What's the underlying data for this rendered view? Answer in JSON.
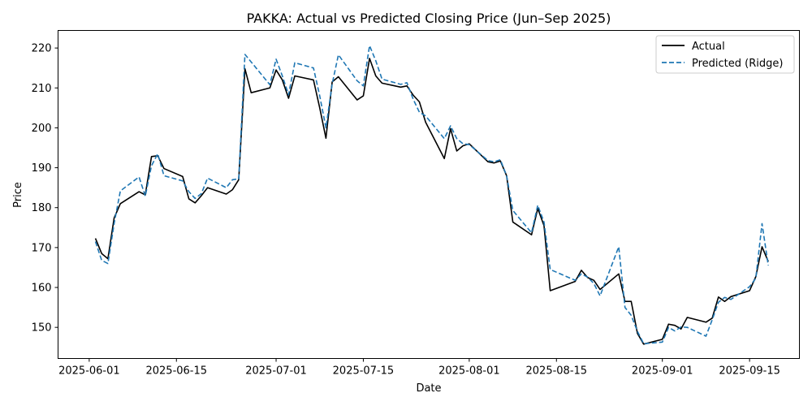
{
  "chart_data": {
    "type": "line",
    "title": "PAKKA: Actual vs Predicted Closing Price (Jun–Sep 2025)",
    "xlabel": "Date",
    "ylabel": "Price",
    "x_range": [
      "2025-05-27",
      "2025-09-23"
    ],
    "ylim": [
      142.2,
      224.4
    ],
    "x_ticks": [
      "2025-06-01",
      "2025-06-15",
      "2025-07-01",
      "2025-07-15",
      "2025-08-01",
      "2025-08-15",
      "2025-09-01",
      "2025-09-15"
    ],
    "y_ticks": [
      150,
      160,
      170,
      180,
      190,
      200,
      210,
      220
    ],
    "grid": false,
    "legend_position": "top-right",
    "series": [
      {
        "name": "Actual",
        "color": "#000000",
        "style": "solid",
        "points": [
          [
            "2025-06-02",
            172.3
          ],
          [
            "2025-06-03",
            168.5
          ],
          [
            "2025-06-04",
            167.2
          ],
          [
            "2025-06-05",
            177.4
          ],
          [
            "2025-06-06",
            181.0
          ],
          [
            "2025-06-09",
            184.0
          ],
          [
            "2025-06-10",
            183.2
          ],
          [
            "2025-06-11",
            192.8
          ],
          [
            "2025-06-12",
            193.0
          ],
          [
            "2025-06-13",
            189.8
          ],
          [
            "2025-06-16",
            187.8
          ],
          [
            "2025-06-17",
            182.2
          ],
          [
            "2025-06-18",
            181.2
          ],
          [
            "2025-06-19",
            183.0
          ],
          [
            "2025-06-20",
            185.0
          ],
          [
            "2025-06-23",
            183.4
          ],
          [
            "2025-06-24",
            184.5
          ],
          [
            "2025-06-25",
            187.0
          ],
          [
            "2025-06-26",
            214.8
          ],
          [
            "2025-06-27",
            208.8
          ],
          [
            "2025-06-30",
            210.0
          ],
          [
            "2025-07-01",
            214.5
          ],
          [
            "2025-07-02",
            212.0
          ],
          [
            "2025-07-03",
            207.4
          ],
          [
            "2025-07-04",
            213.0
          ],
          [
            "2025-07-07",
            212.0
          ],
          [
            "2025-07-08",
            205.0
          ],
          [
            "2025-07-09",
            197.4
          ],
          [
            "2025-07-10",
            211.5
          ],
          [
            "2025-07-11",
            212.8
          ],
          [
            "2025-07-14",
            207.0
          ],
          [
            "2025-07-15",
            208.0
          ],
          [
            "2025-07-16",
            217.4
          ],
          [
            "2025-07-17",
            213.0
          ],
          [
            "2025-07-18",
            211.2
          ],
          [
            "2025-07-21",
            210.2
          ],
          [
            "2025-07-22",
            210.5
          ],
          [
            "2025-07-23",
            208.2
          ],
          [
            "2025-07-24",
            206.5
          ],
          [
            "2025-07-25",
            201.4
          ],
          [
            "2025-07-28",
            192.3
          ],
          [
            "2025-07-29",
            199.8
          ],
          [
            "2025-07-30",
            194.2
          ],
          [
            "2025-07-31",
            195.5
          ],
          [
            "2025-08-01",
            196.0
          ],
          [
            "2025-08-04",
            191.5
          ],
          [
            "2025-08-05",
            191.2
          ],
          [
            "2025-08-06",
            191.7
          ],
          [
            "2025-08-07",
            188.0
          ],
          [
            "2025-08-08",
            176.4
          ],
          [
            "2025-08-11",
            173.2
          ],
          [
            "2025-08-12",
            179.8
          ],
          [
            "2025-08-13",
            175.5
          ],
          [
            "2025-08-14",
            159.2
          ],
          [
            "2025-08-18",
            161.5
          ],
          [
            "2025-08-19",
            164.3
          ],
          [
            "2025-08-20",
            162.5
          ],
          [
            "2025-08-21",
            161.8
          ],
          [
            "2025-08-22",
            159.5
          ],
          [
            "2025-08-25",
            163.4
          ],
          [
            "2025-08-26",
            156.5
          ],
          [
            "2025-08-27",
            156.5
          ],
          [
            "2025-08-28",
            148.5
          ],
          [
            "2025-08-29",
            145.8
          ],
          [
            "2025-09-01",
            147.0
          ],
          [
            "2025-09-02",
            150.8
          ],
          [
            "2025-09-03",
            150.5
          ],
          [
            "2025-09-04",
            149.6
          ],
          [
            "2025-09-05",
            152.5
          ],
          [
            "2025-09-08",
            151.3
          ],
          [
            "2025-09-09",
            152.3
          ],
          [
            "2025-09-10",
            157.6
          ],
          [
            "2025-09-11",
            156.5
          ],
          [
            "2025-09-12",
            157.7
          ],
          [
            "2025-09-15",
            159.2
          ],
          [
            "2025-09-16",
            162.7
          ],
          [
            "2025-09-17",
            170.2
          ],
          [
            "2025-09-18",
            166.5
          ]
        ]
      },
      {
        "name": "Predicted (Ridge)",
        "color": "#1f77b4",
        "style": "dashed",
        "points": [
          [
            "2025-06-02",
            171.5
          ],
          [
            "2025-06-03",
            166.8
          ],
          [
            "2025-06-04",
            166.0
          ],
          [
            "2025-06-05",
            176.0
          ],
          [
            "2025-06-06",
            184.2
          ],
          [
            "2025-06-09",
            187.7
          ],
          [
            "2025-06-10",
            182.9
          ],
          [
            "2025-06-11",
            190.5
          ],
          [
            "2025-06-12",
            193.5
          ],
          [
            "2025-06-13",
            188.0
          ],
          [
            "2025-06-16",
            186.7
          ],
          [
            "2025-06-17",
            184.0
          ],
          [
            "2025-06-18",
            182.3
          ],
          [
            "2025-06-19",
            183.5
          ],
          [
            "2025-06-20",
            187.4
          ],
          [
            "2025-06-23",
            185.0
          ],
          [
            "2025-06-24",
            187.0
          ],
          [
            "2025-06-25",
            187.2
          ],
          [
            "2025-06-26",
            218.4
          ],
          [
            "2025-06-27",
            216.5
          ],
          [
            "2025-06-30",
            210.8
          ],
          [
            "2025-07-01",
            217.2
          ],
          [
            "2025-07-02",
            213.0
          ],
          [
            "2025-07-03",
            208.3
          ],
          [
            "2025-07-04",
            216.3
          ],
          [
            "2025-07-07",
            215.0
          ],
          [
            "2025-07-08",
            208.0
          ],
          [
            "2025-07-09",
            200.0
          ],
          [
            "2025-07-10",
            211.0
          ],
          [
            "2025-07-11",
            218.3
          ],
          [
            "2025-07-14",
            211.8
          ],
          [
            "2025-07-15",
            210.5
          ],
          [
            "2025-07-16",
            220.6
          ],
          [
            "2025-07-17",
            216.8
          ],
          [
            "2025-07-18",
            212.2
          ],
          [
            "2025-07-21",
            210.9
          ],
          [
            "2025-07-22",
            211.3
          ],
          [
            "2025-07-23",
            207.2
          ],
          [
            "2025-07-24",
            203.9
          ],
          [
            "2025-07-25",
            203.0
          ],
          [
            "2025-07-28",
            197.3
          ],
          [
            "2025-07-29",
            200.5
          ],
          [
            "2025-07-30",
            197.3
          ],
          [
            "2025-07-31",
            196.0
          ],
          [
            "2025-08-01",
            195.8
          ],
          [
            "2025-08-04",
            191.8
          ],
          [
            "2025-08-05",
            191.5
          ],
          [
            "2025-08-06",
            192.0
          ],
          [
            "2025-08-07",
            188.0
          ],
          [
            "2025-08-08",
            179.3
          ],
          [
            "2025-08-11",
            173.7
          ],
          [
            "2025-08-12",
            180.6
          ],
          [
            "2025-08-13",
            176.4
          ],
          [
            "2025-08-14",
            164.5
          ],
          [
            "2025-08-18",
            161.8
          ],
          [
            "2025-08-19",
            163.4
          ],
          [
            "2025-08-20",
            162.6
          ],
          [
            "2025-08-21",
            161.0
          ],
          [
            "2025-08-22",
            157.9
          ],
          [
            "2025-08-25",
            170.2
          ],
          [
            "2025-08-26",
            155.0
          ],
          [
            "2025-08-27",
            153.0
          ],
          [
            "2025-08-28",
            149.0
          ],
          [
            "2025-08-29",
            145.9
          ],
          [
            "2025-09-01",
            146.3
          ],
          [
            "2025-09-02",
            150.0
          ],
          [
            "2025-09-03",
            149.1
          ],
          [
            "2025-09-04",
            150.1
          ],
          [
            "2025-09-05",
            150.0
          ],
          [
            "2025-09-08",
            147.8
          ],
          [
            "2025-09-09",
            151.9
          ],
          [
            "2025-09-10",
            156.3
          ],
          [
            "2025-09-11",
            157.5
          ],
          [
            "2025-09-12",
            157.0
          ],
          [
            "2025-09-15",
            160.2
          ],
          [
            "2025-09-16",
            162.3
          ],
          [
            "2025-09-17",
            176.0
          ],
          [
            "2025-09-18",
            165.5
          ]
        ]
      }
    ]
  }
}
